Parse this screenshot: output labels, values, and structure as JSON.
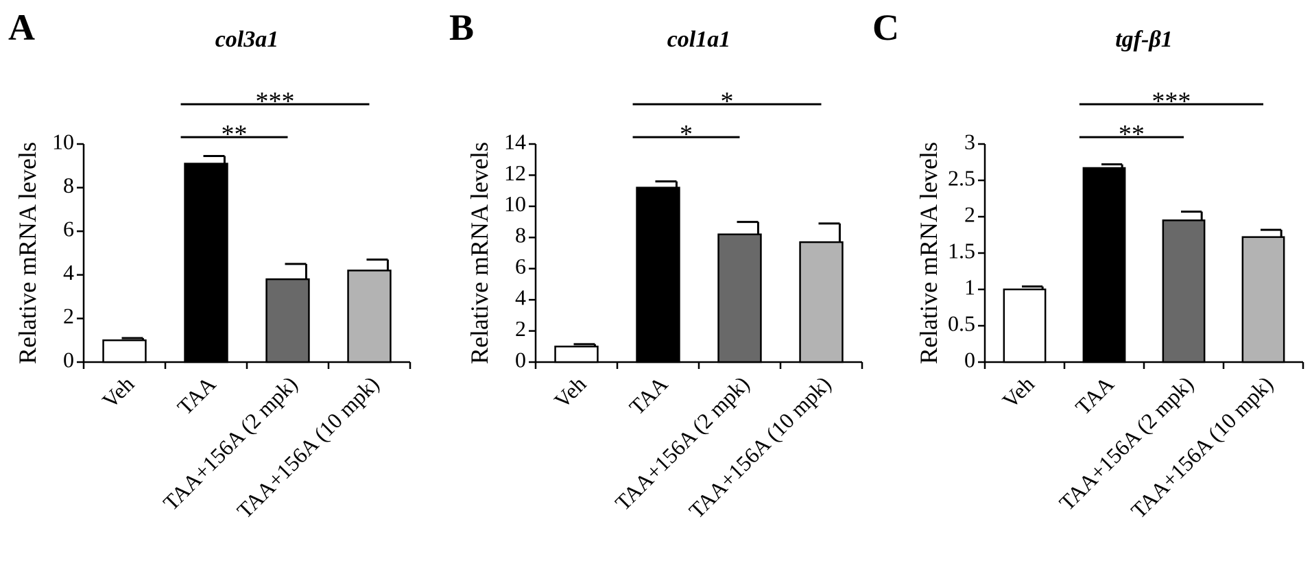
{
  "chart_data": [
    {
      "type": "bar",
      "panel": "A",
      "title": "col3a1",
      "y_label": "Relative mRNA levels",
      "categories": [
        "Veh",
        "TAA",
        "TAA+156A (2 mpk)",
        "TAA+156A (10 mpk)"
      ],
      "values": [
        1,
        9.1,
        3.8,
        4.2
      ],
      "errors": [
        0.1,
        0.35,
        0.7,
        0.5
      ],
      "colors": [
        "#ffffff",
        "#000000",
        "#696969",
        "#b3b3b3"
      ],
      "ylim": [
        0,
        10
      ],
      "yticks": [
        0,
        2,
        4,
        6,
        8,
        10
      ],
      "annotations": [
        {
          "text": "**",
          "from": "TAA",
          "to": "TAA+156A (2 mpk)"
        },
        {
          "text": "***",
          "from": "TAA",
          "to": "TAA+156A (10 mpk)"
        }
      ]
    },
    {
      "type": "bar",
      "panel": "B",
      "title": "col1a1",
      "y_label": "Relative mRNA levels",
      "categories": [
        "Veh",
        "TAA",
        "TAA+156A (2 mpk)",
        "TAA+156A (10 mpk)"
      ],
      "values": [
        1,
        11.2,
        8.2,
        7.7
      ],
      "errors": [
        0.15,
        0.4,
        0.8,
        1.2
      ],
      "colors": [
        "#ffffff",
        "#000000",
        "#696969",
        "#b3b3b3"
      ],
      "ylim": [
        0,
        14
      ],
      "yticks": [
        0,
        2,
        4,
        6,
        8,
        10,
        12,
        14
      ],
      "annotations": [
        {
          "text": "*",
          "from": "TAA",
          "to": "TAA+156A (2 mpk)"
        },
        {
          "text": "*",
          "from": "TAA",
          "to": "TAA+156A (10 mpk)"
        }
      ]
    },
    {
      "type": "bar",
      "panel": "C",
      "title": "tgf-β1",
      "y_label": "Relative mRNA levels",
      "categories": [
        "Veh",
        "TAA",
        "TAA+156A (2 mpk)",
        "TAA+156A (10 mpk)"
      ],
      "values": [
        1,
        2.67,
        1.95,
        1.72
      ],
      "errors": [
        0.04,
        0.05,
        0.12,
        0.1
      ],
      "colors": [
        "#ffffff",
        "#000000",
        "#696969",
        "#b3b3b3"
      ],
      "ylim": [
        0,
        3
      ],
      "yticks": [
        0,
        0.5,
        1,
        1.5,
        2,
        2.5,
        3
      ],
      "annotations": [
        {
          "text": "**",
          "from": "TAA",
          "to": "TAA+156A (2 mpk)"
        },
        {
          "text": "***",
          "from": "TAA",
          "to": "TAA+156A (10 mpk)"
        }
      ]
    }
  ]
}
